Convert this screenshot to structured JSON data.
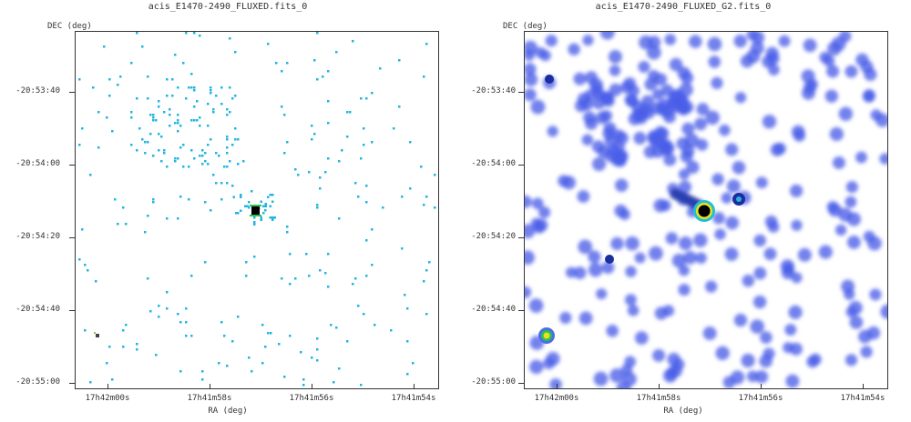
{
  "panels": [
    {
      "title": "acis_E1470-2490_FLUXED.fits_0",
      "ylabel": "DEC (deg)",
      "xlabel": "RA (deg)",
      "yticks": [
        "-20:53:40",
        "-20:54:00",
        "-20:54:20",
        "-20:54:40",
        "-20:55:00"
      ],
      "xticks": [
        "17h42m00s",
        "17h41m58s",
        "17h41m56s",
        "17h41m54s"
      ],
      "style": "sparse-pixels",
      "background": "#ffffff",
      "pixel_color": "#22b5e0"
    },
    {
      "title": "acis_E1470-2490_FLUXED_G2.fits_0",
      "ylabel": "DEC (deg)",
      "xlabel": "RA (deg)",
      "yticks": [
        "-20:53:40",
        "-20:54:00",
        "-20:54:20",
        "-20:54:40",
        "-20:55:00"
      ],
      "xticks": [
        "17h42m00s",
        "17h41m58s",
        "17h41m56s",
        "17h41m54s"
      ],
      "style": "smoothed",
      "background": "#ffffff",
      "blob_color": "#4a5ee8"
    }
  ]
}
